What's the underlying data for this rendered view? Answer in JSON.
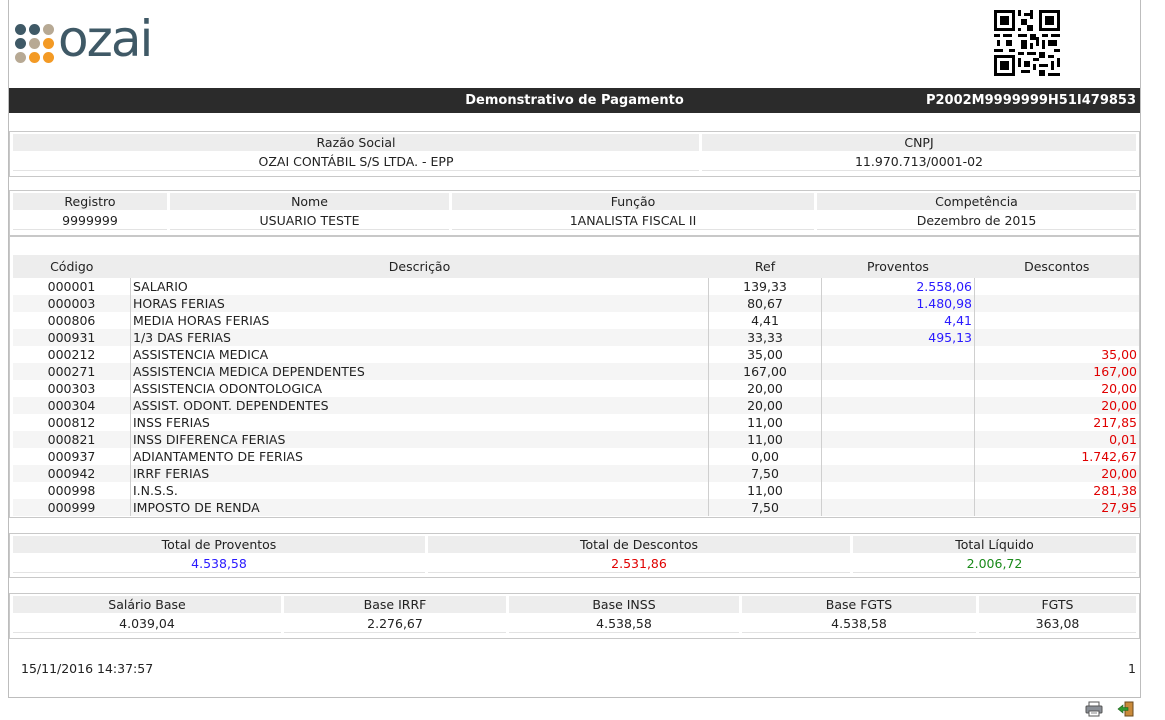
{
  "logo_text": "ozai",
  "document": {
    "title": "Demonstrativo de Pagamento",
    "code": "P2002M9999999H51I479853"
  },
  "company": {
    "headers": [
      "Razão Social",
      "CNPJ"
    ],
    "values": [
      "OZAI CONTÁBIL S/S LTDA. - EPP",
      "11.970.713/0001-02"
    ]
  },
  "employee": {
    "headers": [
      "Registro",
      "Nome",
      "Função",
      "Competência"
    ],
    "values": [
      "9999999",
      "USUARIO TESTE",
      "1ANALISTA FISCAL II",
      "Dezembro de 2015"
    ]
  },
  "items": {
    "headers": [
      "Código",
      "Descrição",
      "Ref",
      "Proventos",
      "Descontos"
    ],
    "rows": [
      {
        "codigo": "000001",
        "descricao": "SALARIO",
        "ref": "139,33",
        "proventos": "2.558,06",
        "descontos": ""
      },
      {
        "codigo": "000003",
        "descricao": "HORAS FERIAS",
        "ref": "80,67",
        "proventos": "1.480,98",
        "descontos": ""
      },
      {
        "codigo": "000806",
        "descricao": "MEDIA HORAS FERIAS",
        "ref": "4,41",
        "proventos": "4,41",
        "descontos": ""
      },
      {
        "codigo": "000931",
        "descricao": "1/3 DAS FERIAS",
        "ref": "33,33",
        "proventos": "495,13",
        "descontos": ""
      },
      {
        "codigo": "000212",
        "descricao": "ASSISTENCIA MEDICA",
        "ref": "35,00",
        "proventos": "",
        "descontos": "35,00"
      },
      {
        "codigo": "000271",
        "descricao": "ASSISTENCIA MEDICA DEPENDENTES",
        "ref": "167,00",
        "proventos": "",
        "descontos": "167,00"
      },
      {
        "codigo": "000303",
        "descricao": "ASSISTENCIA ODONTOLOGICA",
        "ref": "20,00",
        "proventos": "",
        "descontos": "20,00"
      },
      {
        "codigo": "000304",
        "descricao": "ASSIST. ODONT. DEPENDENTES",
        "ref": "20,00",
        "proventos": "",
        "descontos": "20,00"
      },
      {
        "codigo": "000812",
        "descricao": "INSS FERIAS",
        "ref": "11,00",
        "proventos": "",
        "descontos": "217,85"
      },
      {
        "codigo": "000821",
        "descricao": "INSS DIFERENCA FERIAS",
        "ref": "11,00",
        "proventos": "",
        "descontos": "0,01"
      },
      {
        "codigo": "000937",
        "descricao": "ADIANTAMENTO DE FERIAS",
        "ref": "0,00",
        "proventos": "",
        "descontos": "1.742,67"
      },
      {
        "codigo": "000942",
        "descricao": "IRRF FERIAS",
        "ref": "7,50",
        "proventos": "",
        "descontos": "20,00"
      },
      {
        "codigo": "000998",
        "descricao": "I.N.S.S.",
        "ref": "11,00",
        "proventos": "",
        "descontos": "281,38"
      },
      {
        "codigo": "000999",
        "descricao": "IMPOSTO DE RENDA",
        "ref": "7,50",
        "proventos": "",
        "descontos": "27,95"
      }
    ]
  },
  "totals": {
    "headers": [
      "Total de Proventos",
      "Total de Descontos",
      "Total Líquido"
    ],
    "values": [
      "4.538,58",
      "2.531,86",
      "2.006,72"
    ]
  },
  "bases": {
    "headers": [
      "Salário Base",
      "Base IRRF",
      "Base INSS",
      "Base FGTS",
      "FGTS"
    ],
    "values": [
      "4.039,04",
      "2.276,67",
      "4.538,58",
      "4.538,58",
      "363,08"
    ]
  },
  "footer": {
    "timestamp": "15/11/2016 14:37:57",
    "page": "1"
  },
  "icons": {
    "print": "printer-icon",
    "exit": "exit-door-icon"
  },
  "colors": {
    "proventos": "#2a1aff",
    "descontos": "#e00000",
    "liquido": "#1a8a1a",
    "titlebar": "#2b2b2b"
  }
}
